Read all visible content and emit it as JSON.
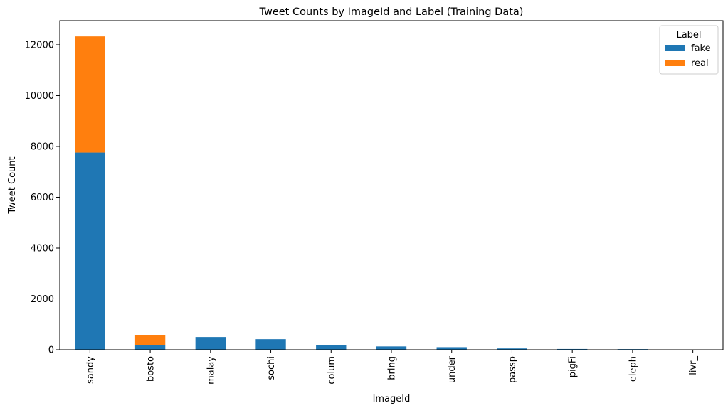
{
  "chart_data": {
    "type": "bar",
    "stacked": true,
    "title": "Tweet Counts by ImageId and Label (Training Data)",
    "xlabel": "ImageId",
    "ylabel": "Tweet Count",
    "categories": [
      "sandy",
      "bosto",
      "malay",
      "sochi",
      "colum",
      "bring",
      "under",
      "passp",
      "pigFi",
      "eleph",
      "livr_"
    ],
    "series": [
      {
        "name": "fake",
        "color": "#1f77b4",
        "values": [
          7760,
          190,
          500,
          415,
          185,
          130,
          100,
          50,
          30,
          25,
          5
        ]
      },
      {
        "name": "real",
        "color": "#ff7f0e",
        "values": [
          4570,
          370,
          0,
          0,
          0,
          0,
          0,
          0,
          0,
          0,
          0
        ]
      }
    ],
    "ylim": [
      0,
      12950
    ],
    "yticks": [
      0,
      2000,
      4000,
      6000,
      8000,
      10000,
      12000
    ],
    "legend": {
      "title": "Label",
      "position": "top-right"
    },
    "grid": false
  }
}
